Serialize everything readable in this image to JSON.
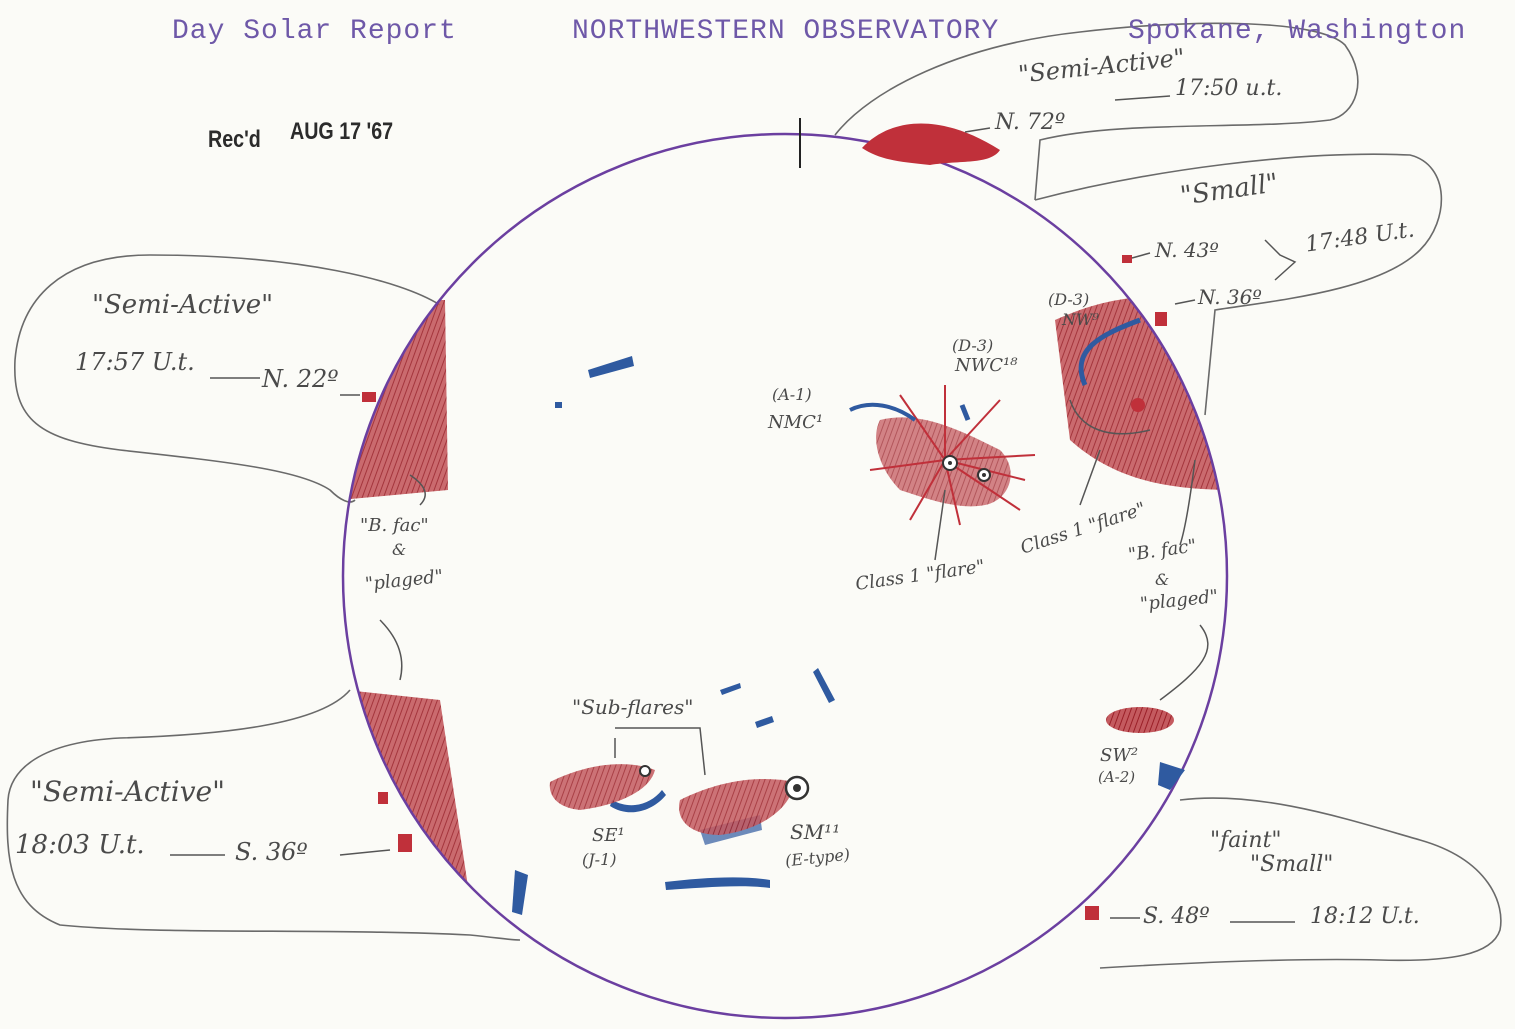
{
  "header": {
    "report_title": "Day Solar Report",
    "observatory": "NORTHWESTERN OBSERVATORY",
    "location": "Spokane, Washington"
  },
  "stamp": {
    "received": "Rec'd",
    "date": "AUG 17 '67"
  },
  "notes": {
    "ne_top_activity": "\"Semi-Active\"",
    "ne_top_latitude": "N. 72º",
    "ne_top_time": "17:50 u.t.",
    "ne_mid_activity": "\"Small\"",
    "ne_mid_lat1": "N. 43º",
    "ne_mid_lat2": "N. 36º",
    "ne_mid_time": "17:48 U.t.",
    "w_activity": "\"Semi-Active\"",
    "w_time": "17:57 U.t.",
    "w_latitude": "N. 22º",
    "sw_activity": "\"Semi-Active\"",
    "sw_time": "18:03 U.t.",
    "sw_latitude": "S. 36º",
    "se_activity1": "\"faint\"",
    "se_activity2": "\"Small\"",
    "se_latitude": "S. 48º",
    "se_time": "18:12 U.t."
  },
  "disk_labels": {
    "bfac_left": "\"B. fac\"",
    "amp_left": "&",
    "plaged_left": "\"plaged\"",
    "bfac_right": "\"B. fac\"",
    "amp_right": "&",
    "plaged_right": "\"plaged\"",
    "group_a1_class": "(A-1)",
    "group_a1_name": "NMC¹",
    "group_d3_center_class": "(D-3)",
    "group_d3_center_name": "NWC¹⁸",
    "group_d3_limb_class": "(D-3)",
    "group_d3_limb_name": "NW⁹",
    "flare_center": "Class 1 \"flare\"",
    "flare_limb": "Class 1 \"flare\"",
    "subflares": "\"Sub-flares\"",
    "group_se_name": "SE¹",
    "group_se_class": "(J-1)",
    "group_sm_name": "SM¹¹",
    "group_sm_class": "(E-type)",
    "group_sw_name": "SW²",
    "group_sw_class": "(A-2)"
  },
  "colors": {
    "limb": "#6b3fa0",
    "plage": "#b02a30",
    "filament": "#2f5aa0",
    "pencil": "#555555"
  }
}
